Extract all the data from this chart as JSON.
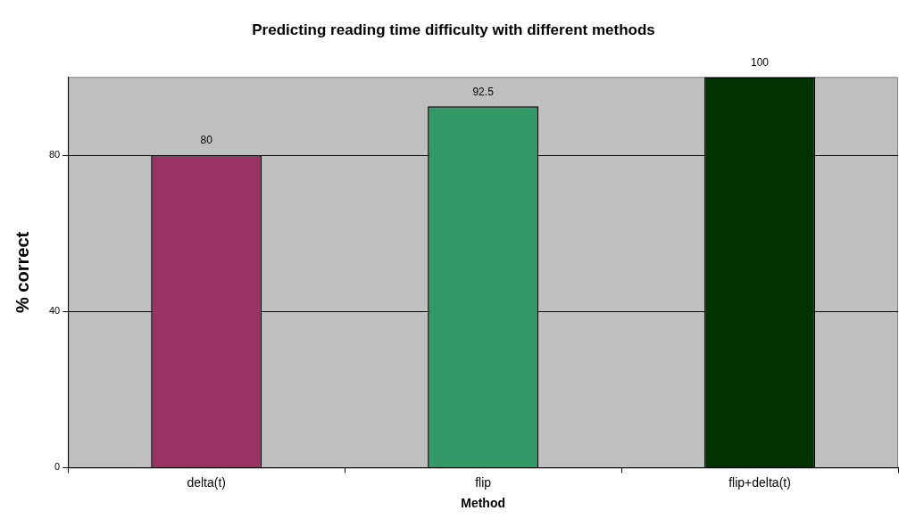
{
  "chart_data": {
    "type": "bar",
    "title": "Predicting reading time difficulty with different methods",
    "xlabel": "Method",
    "ylabel": "% correct",
    "categories": [
      "delta(t)",
      "flip",
      "flip+delta(t)"
    ],
    "values": [
      80,
      92.5,
      100
    ],
    "colors": [
      "#993366",
      "#339966",
      "#003300"
    ],
    "ylim": [
      0,
      100
    ],
    "yticks": [
      0,
      40,
      80
    ],
    "grid": "y",
    "legend": false,
    "data_labels": true
  }
}
